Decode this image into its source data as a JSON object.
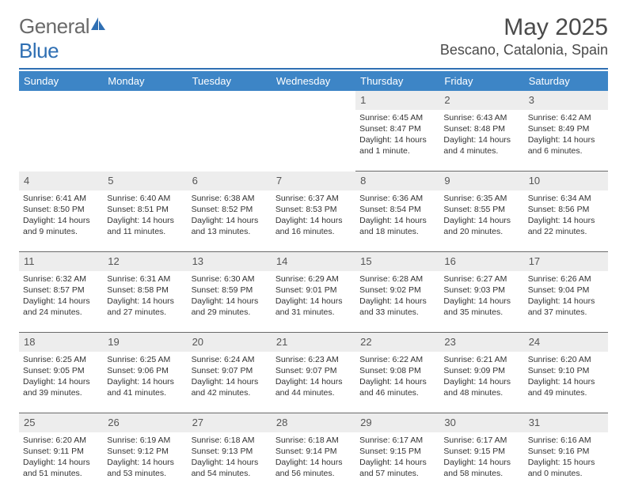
{
  "brand": {
    "word1": "General",
    "word2": "Blue"
  },
  "title": "May 2025",
  "location": "Bescano, Catalonia, Spain",
  "colors": {
    "header_bg": "#3d85c6",
    "header_text": "#ffffff",
    "rule": "#2f6fb3",
    "daynum_bg": "#ededed",
    "text": "#333333",
    "logo_gray": "#6a6a6a",
    "logo_blue": "#2f6fb3"
  },
  "day_headers": [
    "Sunday",
    "Monday",
    "Tuesday",
    "Wednesday",
    "Thursday",
    "Friday",
    "Saturday"
  ],
  "weeks": [
    {
      "nums": [
        "",
        "",
        "",
        "",
        "1",
        "2",
        "3"
      ],
      "cells": [
        null,
        null,
        null,
        null,
        {
          "sunrise": "6:45 AM",
          "sunset": "8:47 PM",
          "daylight": "14 hours and 1 minute."
        },
        {
          "sunrise": "6:43 AM",
          "sunset": "8:48 PM",
          "daylight": "14 hours and 4 minutes."
        },
        {
          "sunrise": "6:42 AM",
          "sunset": "8:49 PM",
          "daylight": "14 hours and 6 minutes."
        }
      ]
    },
    {
      "nums": [
        "4",
        "5",
        "6",
        "7",
        "8",
        "9",
        "10"
      ],
      "cells": [
        {
          "sunrise": "6:41 AM",
          "sunset": "8:50 PM",
          "daylight": "14 hours and 9 minutes."
        },
        {
          "sunrise": "6:40 AM",
          "sunset": "8:51 PM",
          "daylight": "14 hours and 11 minutes."
        },
        {
          "sunrise": "6:38 AM",
          "sunset": "8:52 PM",
          "daylight": "14 hours and 13 minutes."
        },
        {
          "sunrise": "6:37 AM",
          "sunset": "8:53 PM",
          "daylight": "14 hours and 16 minutes."
        },
        {
          "sunrise": "6:36 AM",
          "sunset": "8:54 PM",
          "daylight": "14 hours and 18 minutes."
        },
        {
          "sunrise": "6:35 AM",
          "sunset": "8:55 PM",
          "daylight": "14 hours and 20 minutes."
        },
        {
          "sunrise": "6:34 AM",
          "sunset": "8:56 PM",
          "daylight": "14 hours and 22 minutes."
        }
      ]
    },
    {
      "nums": [
        "11",
        "12",
        "13",
        "14",
        "15",
        "16",
        "17"
      ],
      "cells": [
        {
          "sunrise": "6:32 AM",
          "sunset": "8:57 PM",
          "daylight": "14 hours and 24 minutes."
        },
        {
          "sunrise": "6:31 AM",
          "sunset": "8:58 PM",
          "daylight": "14 hours and 27 minutes."
        },
        {
          "sunrise": "6:30 AM",
          "sunset": "8:59 PM",
          "daylight": "14 hours and 29 minutes."
        },
        {
          "sunrise": "6:29 AM",
          "sunset": "9:01 PM",
          "daylight": "14 hours and 31 minutes."
        },
        {
          "sunrise": "6:28 AM",
          "sunset": "9:02 PM",
          "daylight": "14 hours and 33 minutes."
        },
        {
          "sunrise": "6:27 AM",
          "sunset": "9:03 PM",
          "daylight": "14 hours and 35 minutes."
        },
        {
          "sunrise": "6:26 AM",
          "sunset": "9:04 PM",
          "daylight": "14 hours and 37 minutes."
        }
      ]
    },
    {
      "nums": [
        "18",
        "19",
        "20",
        "21",
        "22",
        "23",
        "24"
      ],
      "cells": [
        {
          "sunrise": "6:25 AM",
          "sunset": "9:05 PM",
          "daylight": "14 hours and 39 minutes."
        },
        {
          "sunrise": "6:25 AM",
          "sunset": "9:06 PM",
          "daylight": "14 hours and 41 minutes."
        },
        {
          "sunrise": "6:24 AM",
          "sunset": "9:07 PM",
          "daylight": "14 hours and 42 minutes."
        },
        {
          "sunrise": "6:23 AM",
          "sunset": "9:07 PM",
          "daylight": "14 hours and 44 minutes."
        },
        {
          "sunrise": "6:22 AM",
          "sunset": "9:08 PM",
          "daylight": "14 hours and 46 minutes."
        },
        {
          "sunrise": "6:21 AM",
          "sunset": "9:09 PM",
          "daylight": "14 hours and 48 minutes."
        },
        {
          "sunrise": "6:20 AM",
          "sunset": "9:10 PM",
          "daylight": "14 hours and 49 minutes."
        }
      ]
    },
    {
      "nums": [
        "25",
        "26",
        "27",
        "28",
        "29",
        "30",
        "31"
      ],
      "cells": [
        {
          "sunrise": "6:20 AM",
          "sunset": "9:11 PM",
          "daylight": "14 hours and 51 minutes."
        },
        {
          "sunrise": "6:19 AM",
          "sunset": "9:12 PM",
          "daylight": "14 hours and 53 minutes."
        },
        {
          "sunrise": "6:18 AM",
          "sunset": "9:13 PM",
          "daylight": "14 hours and 54 minutes."
        },
        {
          "sunrise": "6:18 AM",
          "sunset": "9:14 PM",
          "daylight": "14 hours and 56 minutes."
        },
        {
          "sunrise": "6:17 AM",
          "sunset": "9:15 PM",
          "daylight": "14 hours and 57 minutes."
        },
        {
          "sunrise": "6:17 AM",
          "sunset": "9:15 PM",
          "daylight": "14 hours and 58 minutes."
        },
        {
          "sunrise": "6:16 AM",
          "sunset": "9:16 PM",
          "daylight": "15 hours and 0 minutes."
        }
      ]
    }
  ],
  "labels": {
    "sunrise": "Sunrise: ",
    "sunset": "Sunset: ",
    "daylight": "Daylight: "
  }
}
